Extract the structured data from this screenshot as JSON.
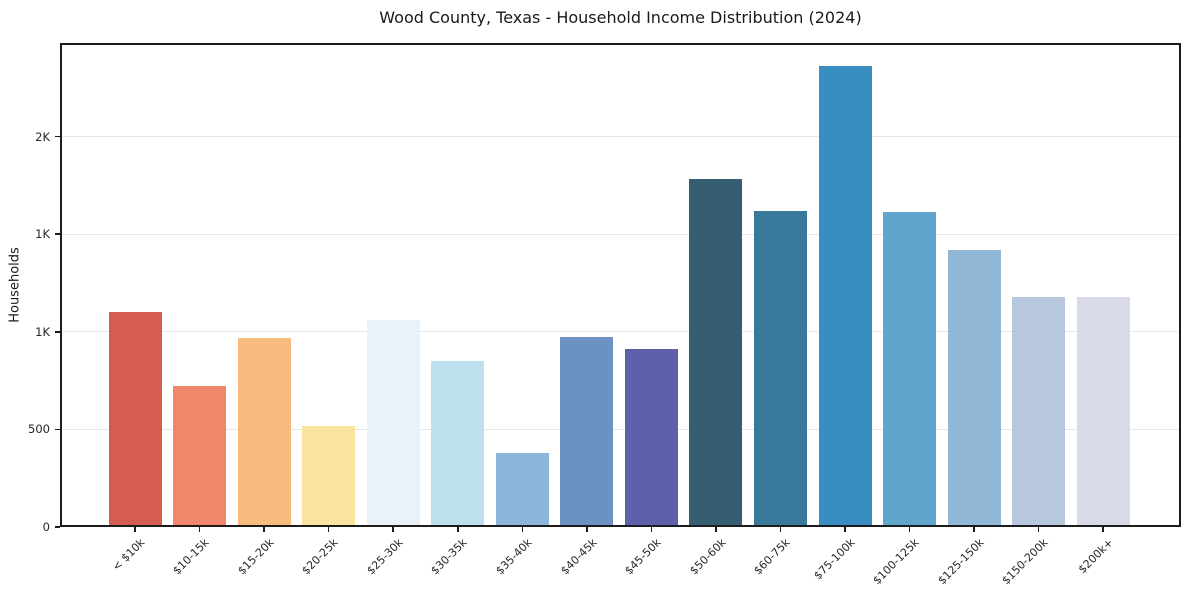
{
  "title": "Wood County, Texas - Household Income Distribution (2024)",
  "y_axis_label": "Households",
  "chart_data": {
    "type": "bar",
    "title": "Wood County, Texas - Household Income Distribution (2024)",
    "xlabel": "",
    "ylabel": "Households",
    "categories": [
      "< $10k",
      "$10-15k",
      "$15-20k",
      "$20-25k",
      "$25-30k",
      "$30-35k",
      "$35-40k",
      "$40-45k",
      "$45-50k",
      "$50-60k",
      "$60-75k",
      "$75-100k",
      "$100-125k",
      "$125-150k",
      "$150-200k",
      "$200k+"
    ],
    "values": [
      1100,
      720,
      970,
      520,
      1060,
      850,
      380,
      975,
      910,
      1785,
      1620,
      2360,
      1615,
      1420,
      1180,
      1180
    ],
    "bar_colors": [
      "#d65c52",
      "#f0876a",
      "#f9bb7d",
      "#fbe3a0",
      "#e8f2f8",
      "#bedfee",
      "#8db7da",
      "#6c91c3",
      "#5e60aa",
      "#365d71",
      "#38799c",
      "#388dc1",
      "#5fa5cc",
      "#92b8d8",
      "#b7c8de",
      "#d8dae8"
    ],
    "ylim": [
      0,
      2480
    ],
    "yticks": [
      {
        "value": 0,
        "label": "0"
      },
      {
        "value": 500,
        "label": "500"
      },
      {
        "value": 1000,
        "label": "1K"
      },
      {
        "value": 1500,
        "label": "1K"
      },
      {
        "value": 2000,
        "label": "2K"
      }
    ],
    "grid": "horizontal",
    "legend": "none",
    "colors": {
      "background": "#ffffff",
      "spine": "#1c1c1c",
      "gridline": "#e7e7e7",
      "tick_text": "#262626",
      "title_text": "#1a1a1a"
    }
  }
}
